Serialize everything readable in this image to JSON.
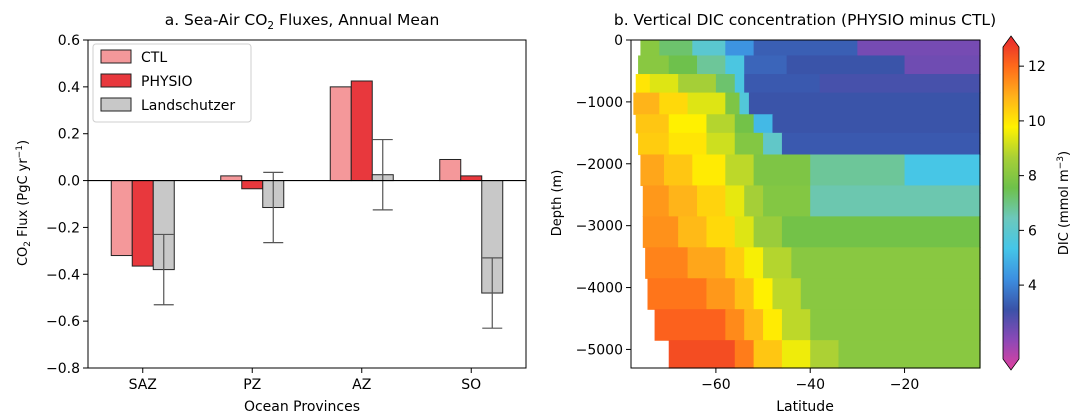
{
  "chart_data": [
    {
      "type": "bar",
      "title": "a. Sea-Air CO₂ Fluxes, Annual Mean",
      "title_main": "a. Sea-Air CO",
      "title_sub": "2",
      "title_rest": " Fluxes, Annual Mean",
      "xlabel": "Ocean Provinces",
      "ylabel": "CO₂ Flux (PgC yr⁻¹)",
      "ylabel_a": "CO",
      "ylabel_b": "2",
      "ylabel_c": " Flux (PgC yr",
      "ylabel_d": "−1",
      "ylabel_e": ")",
      "ylim": [
        -0.8,
        0.6
      ],
      "yticks": [
        -0.8,
        -0.6,
        -0.4,
        -0.2,
        0.0,
        0.2,
        0.4,
        0.6
      ],
      "ytick_labels": [
        "−0.8",
        "−0.6",
        "−0.4",
        "−0.2",
        "0.0",
        "0.2",
        "0.4",
        "0.6"
      ],
      "categories": [
        "SAZ",
        "PZ",
        "AZ",
        "SO"
      ],
      "legend_position": "top-left",
      "series": [
        {
          "name": "CTL",
          "color": "#f4989a",
          "values": [
            -0.32,
            0.02,
            0.4,
            0.09
          ]
        },
        {
          "name": "PHYSIO",
          "color": "#e8383d",
          "values": [
            -0.365,
            -0.035,
            0.425,
            0.02
          ]
        },
        {
          "name": "Landschutzer",
          "color": "#c8c8c8",
          "values": [
            -0.38,
            -0.115,
            0.025,
            -0.48
          ],
          "error_low": [
            -0.53,
            -0.265,
            -0.125,
            -0.63
          ],
          "error_high": [
            -0.23,
            0.035,
            0.175,
            -0.33
          ]
        }
      ]
    },
    {
      "type": "heatmap",
      "title": "b. Vertical DIC concentration (PHYSIO minus CTL)",
      "xlabel": "Latitude",
      "ylabel": "Depth (m)",
      "xlim": [
        -78,
        -4
      ],
      "xticks": [
        -60,
        -40,
        -20
      ],
      "xtick_labels": [
        "−60",
        "−40",
        "−20"
      ],
      "ylim": [
        -5300,
        0
      ],
      "yticks": [
        0,
        -1000,
        -2000,
        -3000,
        -4000,
        -5000
      ],
      "ytick_labels": [
        "0",
        "−1000",
        "−2000",
        "−3000",
        "−4000",
        "−5000"
      ],
      "colorbar": {
        "label": "DIC (mmol m⁻³)",
        "label_a": "DIC (mmol m",
        "label_b": "−3",
        "label_c": ")",
        "range": [
          1.3,
          12.7
        ],
        "ticks": [
          4,
          6,
          8,
          10,
          12
        ],
        "colormap": [
          "#e0409f",
          "#8b49b7",
          "#3a52a8",
          "#3c8fe0",
          "#45c6e8",
          "#6cc8bc",
          "#6ec14a",
          "#a8d036",
          "#fff200",
          "#ffb21a",
          "#ff6a1a",
          "#e6262e"
        ]
      },
      "depth_levels": [
        {
          "top": 0,
          "bottom": -250,
          "west": -76,
          "cells": [
            [
              -76,
              -72,
              8
            ],
            [
              -72,
              -65,
              7.2
            ],
            [
              -65,
              -58,
              6.0
            ],
            [
              -58,
              -52,
              4.5
            ],
            [
              -52,
              -30,
              3.6
            ],
            [
              -30,
              -4,
              2.6
            ]
          ]
        },
        {
          "top": -250,
          "bottom": -550,
          "west": -76.5,
          "cells": [
            [
              -76.5,
              -70,
              8
            ],
            [
              -70,
              -64,
              7.5
            ],
            [
              -64,
              -58,
              6.8
            ],
            [
              -58,
              -54,
              5.6
            ],
            [
              -54,
              -45,
              3.7
            ],
            [
              -45,
              -20,
              3.4
            ],
            [
              -20,
              -4,
              2.7
            ]
          ]
        },
        {
          "top": -550,
          "bottom": -850,
          "west": -77,
          "cells": [
            [
              -77,
              -74,
              9.8
            ],
            [
              -74,
              -68,
              9.2
            ],
            [
              -68,
              -60,
              8.5
            ],
            [
              -60,
              -56,
              7.2
            ],
            [
              -56,
              -54,
              5.6
            ],
            [
              -54,
              -38,
              3.5
            ],
            [
              -38,
              -4,
              3.2
            ]
          ]
        },
        {
          "top": -850,
          "bottom": -1200,
          "west": -77.5,
          "cells": [
            [
              -77.5,
              -72,
              10.6
            ],
            [
              -72,
              -66,
              10.0
            ],
            [
              -66,
              -58,
              9.2
            ],
            [
              -58,
              -55,
              7.8
            ],
            [
              -55,
              -53,
              5.8
            ],
            [
              -53,
              -4,
              3.4
            ]
          ]
        },
        {
          "top": -1200,
          "bottom": -1500,
          "west": -77,
          "cells": [
            [
              -77,
              -70,
              10.3
            ],
            [
              -70,
              -62,
              9.6
            ],
            [
              -62,
              -56,
              8.7
            ],
            [
              -56,
              -52,
              7.6
            ],
            [
              -52,
              -48,
              5.2
            ],
            [
              -48,
              -4,
              3.4
            ]
          ]
        },
        {
          "top": -1500,
          "bottom": -1850,
          "west": -76.5,
          "cells": [
            [
              -76.5,
              -70,
              10.2
            ],
            [
              -70,
              -62,
              9.8
            ],
            [
              -62,
              -56,
              9.0
            ],
            [
              -56,
              -50,
              7.9
            ],
            [
              -50,
              -46,
              6.2
            ],
            [
              -46,
              -4,
              3.5
            ]
          ]
        },
        {
          "top": -1850,
          "bottom": -2350,
          "west": -76,
          "cells": [
            [
              -76,
              -71,
              10.8
            ],
            [
              -71,
              -65,
              10.3
            ],
            [
              -65,
              -58,
              9.7
            ],
            [
              -58,
              -52,
              8.8
            ],
            [
              -52,
              -40,
              7.8
            ],
            [
              -40,
              -20,
              6.8
            ],
            [
              -20,
              -4,
              5.5
            ]
          ]
        },
        {
          "top": -2350,
          "bottom": -2850,
          "west": -75.5,
          "cells": [
            [
              -75.5,
              -70,
              11.0
            ],
            [
              -70,
              -64,
              10.6
            ],
            [
              -64,
              -58,
              10.1
            ],
            [
              -58,
              -54,
              9.3
            ],
            [
              -54,
              -50,
              8.5
            ],
            [
              -50,
              -40,
              7.9
            ],
            [
              -40,
              -4,
              6.6
            ]
          ]
        },
        {
          "top": -2850,
          "bottom": -3350,
          "west": -75.5,
          "cells": [
            [
              -75.5,
              -68,
              11.1
            ],
            [
              -68,
              -62,
              10.5
            ],
            [
              -62,
              -56,
              10.0
            ],
            [
              -56,
              -52,
              9.2
            ],
            [
              -52,
              -46,
              8.3
            ],
            [
              -46,
              -4,
              7.6
            ]
          ]
        },
        {
          "top": -3350,
          "bottom": -3850,
          "west": -75,
          "cells": [
            [
              -75,
              -66,
              11.3
            ],
            [
              -66,
              -58,
              10.8
            ],
            [
              -58,
              -54,
              10.2
            ],
            [
              -54,
              -50,
              9.5
            ],
            [
              -50,
              -44,
              8.7
            ],
            [
              -44,
              -4,
              8.0
            ]
          ]
        },
        {
          "top": -3850,
          "bottom": -4350,
          "west": -74.5,
          "cells": [
            [
              -74.5,
              -62,
              11.5
            ],
            [
              -62,
              -56,
              11.0
            ],
            [
              -56,
              -52,
              10.4
            ],
            [
              -52,
              -48,
              9.6
            ],
            [
              -48,
              -42,
              8.8
            ],
            [
              -42,
              -4,
              8.0
            ]
          ]
        },
        {
          "top": -4350,
          "bottom": -4850,
          "west": -73,
          "cells": [
            [
              -73,
              -58,
              11.8
            ],
            [
              -58,
              -54,
              11.2
            ],
            [
              -54,
              -50,
              10.5
            ],
            [
              -50,
              -46,
              9.7
            ],
            [
              -46,
              -40,
              8.8
            ],
            [
              -40,
              -4,
              8.0
            ]
          ]
        },
        {
          "top": -4850,
          "bottom": -5300,
          "west": -70,
          "cells": [
            [
              -70,
              -56,
              12.1
            ],
            [
              -56,
              -52,
              11.4
            ],
            [
              -52,
              -46,
              10.3
            ],
            [
              -46,
              -40,
              9.4
            ],
            [
              -40,
              -34,
              8.6
            ],
            [
              -34,
              -4,
              8.0
            ]
          ]
        }
      ]
    }
  ]
}
